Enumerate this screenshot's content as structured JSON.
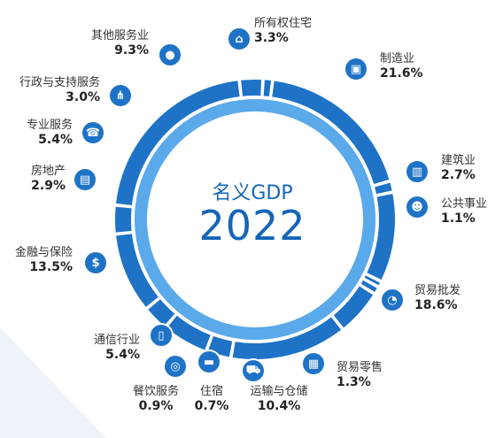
{
  "chart_data": {
    "type": "donut",
    "title": "名义GDP",
    "year": "2022",
    "sectors": [
      {
        "name": "所有权住宅",
        "value": 3.3,
        "pct": "3.3%",
        "icon": "house-icon"
      },
      {
        "name": "制造业",
        "value": 21.6,
        "pct": "21.6%",
        "icon": "box-icon"
      },
      {
        "name": "建筑业",
        "value": 2.7,
        "pct": "2.7%",
        "icon": "building-icon"
      },
      {
        "name": "公共事业",
        "value": 1.1,
        "pct": "1.1%",
        "icon": "people-icon"
      },
      {
        "name": "贸易批发",
        "value": 18.6,
        "pct": "18.6%",
        "icon": "pie-chart-icon"
      },
      {
        "name": "贸易零售",
        "value": 1.3,
        "pct": "1.3%",
        "icon": "safe-icon"
      },
      {
        "name": "运输与仓储",
        "value": 10.4,
        "pct": "10.4%",
        "icon": "cart-icon"
      },
      {
        "name": "住宿",
        "value": 0.7,
        "pct": "0.7%",
        "icon": "bed-icon"
      },
      {
        "name": "餐饮服务",
        "value": 0.9,
        "pct": "0.9%",
        "icon": "coins-icon"
      },
      {
        "name": "通信行业",
        "value": 5.4,
        "pct": "5.4%",
        "icon": "phone-icon"
      },
      {
        "name": "金融与保险",
        "value": 13.5,
        "pct": "13.5%",
        "icon": "dollar-icon"
      },
      {
        "name": "房地产",
        "value": 2.9,
        "pct": "2.9%",
        "icon": "document-icon"
      },
      {
        "name": "专业服务",
        "value": 5.4,
        "pct": "5.4%",
        "icon": "telephone-icon"
      },
      {
        "name": "行政与支持服务",
        "value": 3.0,
        "pct": "3.0%",
        "icon": "org-chart-icon"
      },
      {
        "name": "其他服务业",
        "value": 9.3,
        "pct": "9.3%",
        "icon": "person-icon"
      }
    ]
  },
  "colors": {
    "ring_outer": "#1f73c6",
    "ring_inner": "#5aa9ea",
    "text_accent": "#1565b8",
    "background_shape": "#eef3f9"
  }
}
